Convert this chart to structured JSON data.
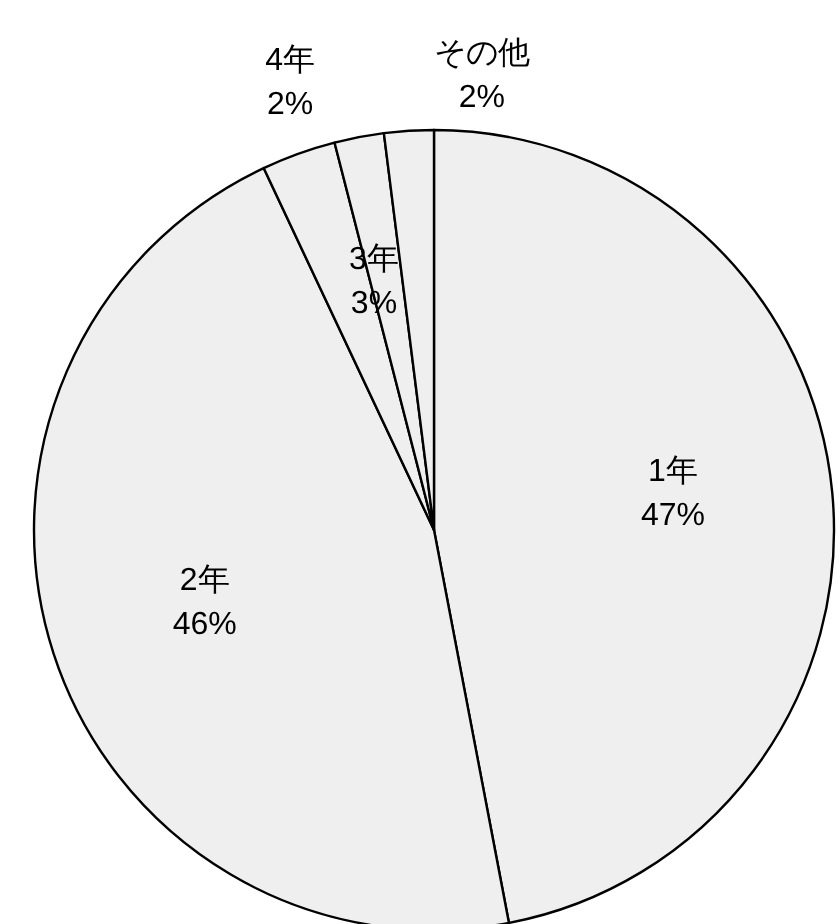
{
  "chart_data": {
    "type": "pie",
    "categories": [
      "1年",
      "2年",
      "3年",
      "4年",
      "その他"
    ],
    "values": [
      47,
      46,
      3,
      2,
      2
    ],
    "value_labels": [
      "47%",
      "46%",
      "3%",
      "2%",
      "2%"
    ],
    "colors": [
      "#efefef",
      "#efefef",
      "#efefef",
      "#efefef",
      "#efefef"
    ]
  }
}
